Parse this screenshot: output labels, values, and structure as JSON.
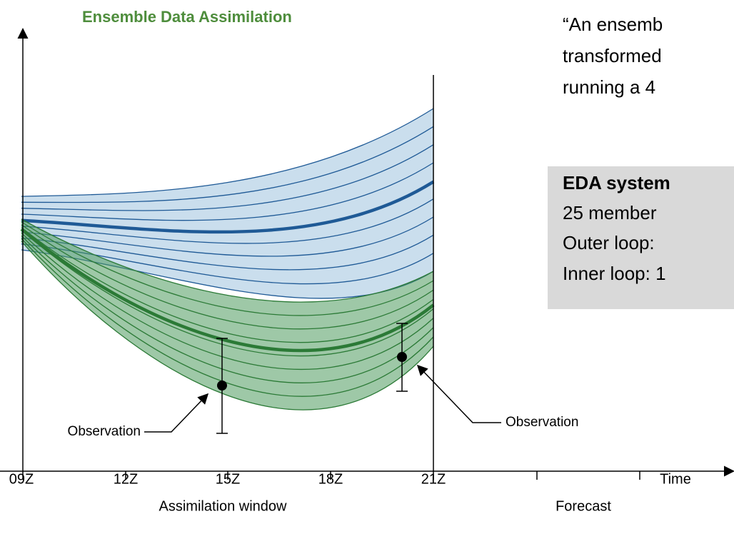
{
  "title": "Ensemble Data Assimilation",
  "quote": [
    "“An ensemb",
    "transformed",
    "running a 4"
  ],
  "box": {
    "heading": "EDA system",
    "lines": [
      "25 member",
      "Outer loop:",
      "Inner loop: 1"
    ]
  },
  "axis": {
    "ticks": [
      "09Z",
      "12Z",
      "15Z",
      "18Z",
      "21Z"
    ],
    "time": "Time",
    "assimilation": "Assimilation window",
    "forecast": "Forecast"
  },
  "annotations": [
    "Observation",
    "Observation"
  ]
}
